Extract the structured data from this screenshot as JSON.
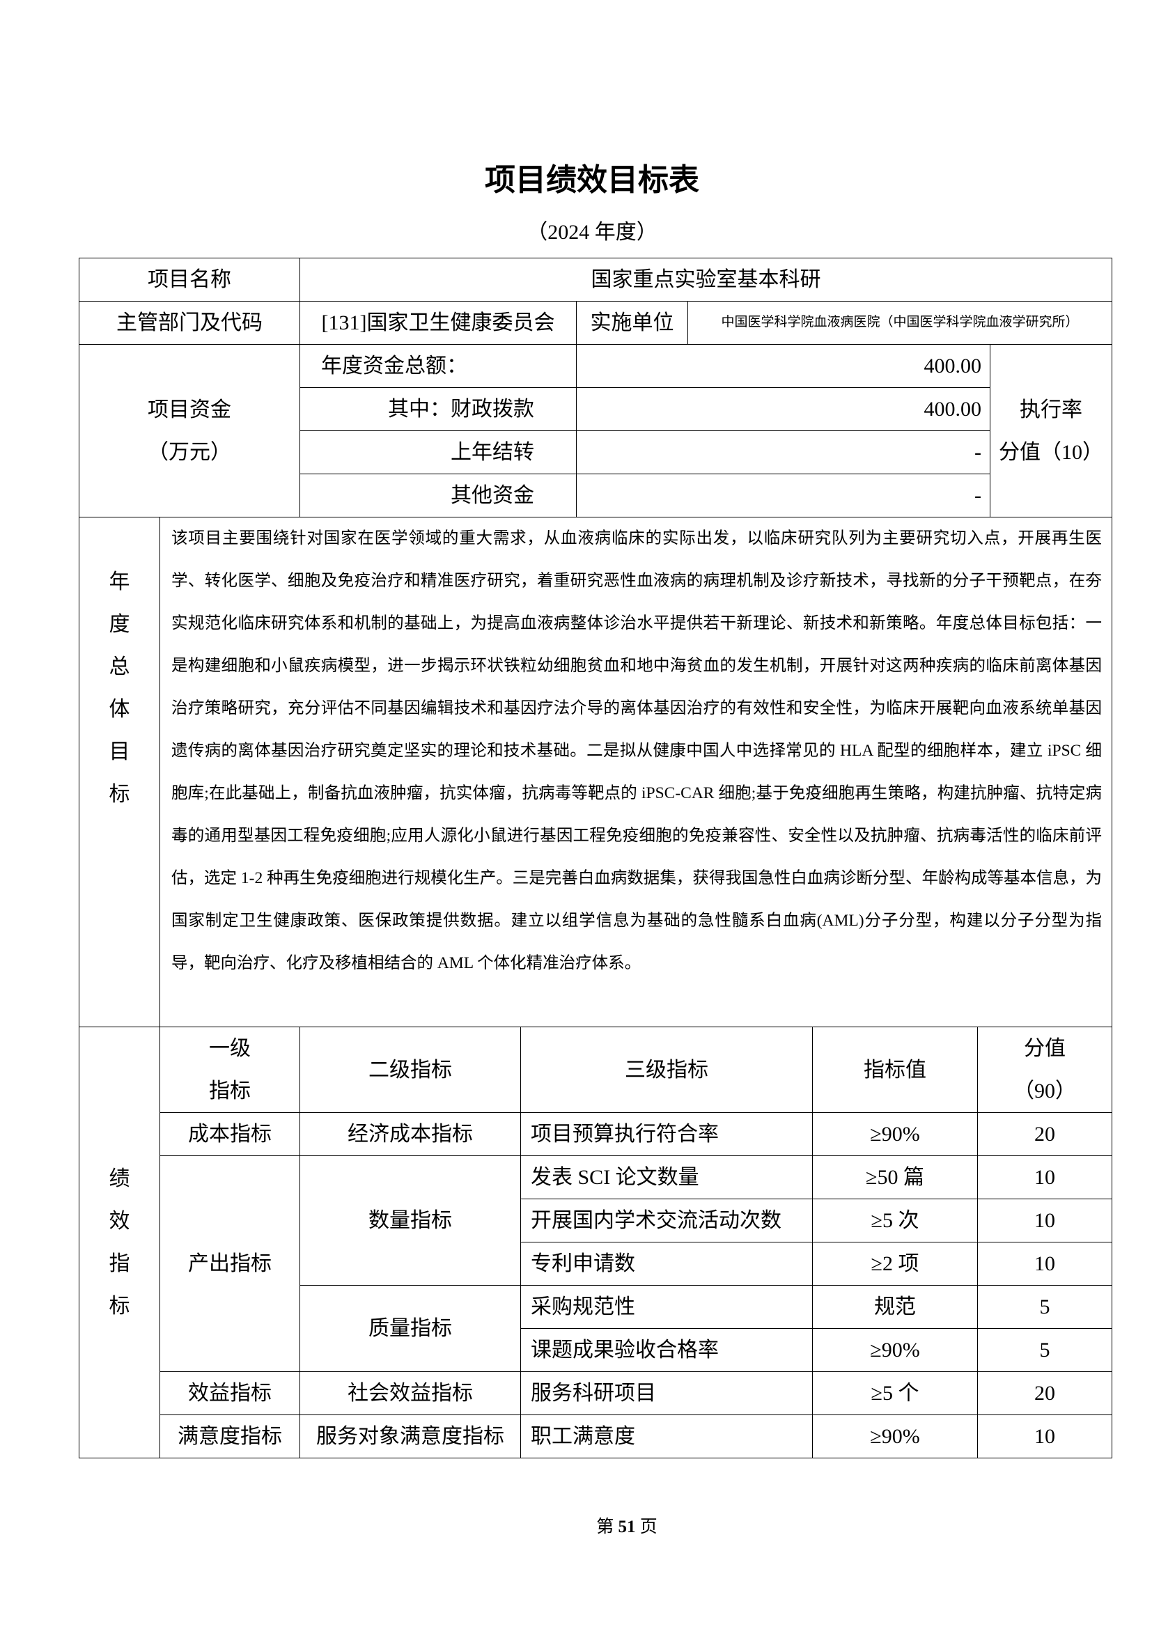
{
  "title": "项目绩效目标表",
  "subtitle": "（2024 年度）",
  "project": {
    "name_label": "项目名称",
    "name": "国家重点实验室基本科研",
    "dept_label": "主管部门及代码",
    "dept": "[131]国家卫生健康委员会",
    "unit_label": "实施单位",
    "unit": "中国医学科学院血液病医院（中国医学科学院血液学研究所）"
  },
  "funds": {
    "label": "项目资金",
    "unit": "（万元）",
    "total_label": "年度资金总额：",
    "total": "400.00",
    "fiscal_label": "其中：财政拨款",
    "fiscal": "400.00",
    "carry_label": "上年结转",
    "carry": "-",
    "other_label": "其他资金",
    "other": "-",
    "rate_label": "执行率",
    "rate_score": "分值（10）"
  },
  "goal": {
    "label_chars": [
      "年",
      "度",
      "总",
      "体",
      "目",
      "标"
    ],
    "text": "该项目主要围绕针对国家在医学领域的重大需求，从血液病临床的实际出发，以临床研究队列为主要研究切入点，开展再生医学、转化医学、细胞及免疫治疗和精准医疗研究，着重研究恶性血液病的病理机制及诊疗新技术，寻找新的分子干预靶点，在夯实规范化临床研究体系和机制的基础上，为提高血液病整体诊治水平提供若干新理论、新技术和新策略。年度总体目标包括：一是构建细胞和小鼠疾病模型，进一步揭示环状铁粒幼细胞贫血和地中海贫血的发生机制，开展针对这两种疾病的临床前离体基因治疗策略研究，充分评估不同基因编辑技术和基因疗法介导的离体基因治疗的有效性和安全性，为临床开展靶向血液系统单基因遗传病的离体基因治疗研究奠定坚实的理论和技术基础。二是拟从健康中国人中选择常见的 HLA 配型的细胞样本，建立 iPSC 细胞库;在此基础上，制备抗血液肿瘤，抗实体瘤，抗病毒等靶点的 iPSC-CAR 细胞;基于免疫细胞再生策略，构建抗肿瘤、抗特定病毒的通用型基因工程免疫细胞;应用人源化小鼠进行基因工程免疫细胞的免疫兼容性、安全性以及抗肿瘤、抗病毒活性的临床前评估，选定 1-2 种再生免疫细胞进行规模化生产。三是完善白血病数据集，获得我国急性白血病诊断分型、年龄构成等基本信息，为国家制定卫生健康政策、医保政策提供数据。建立以组学信息为基础的急性髓系白血病(AML)分子分型，构建以分子分型为指导，靶向治疗、化疗及移植相结合的 AML 个体化精准治疗体系。"
  },
  "perf": {
    "label_chars": [
      "绩",
      "效",
      "指",
      "标"
    ],
    "headers": {
      "level1": "一级\n指标",
      "level1_a": "一级",
      "level1_b": "指标",
      "level2": "二级指标",
      "level3": "三级指标",
      "value": "指标值",
      "score_a": "分值",
      "score_b": "（90）"
    },
    "groups": {
      "cost": "成本指标",
      "econ": "经济成本指标",
      "output": "产出指标",
      "quantity": "数量指标",
      "quality": "质量指标",
      "benefit": "效益指标",
      "social": "社会效益指标",
      "satisfaction": "满意度指标",
      "service": "服务对象满意度指标"
    },
    "rows": [
      {
        "name": "项目预算执行符合率",
        "value": "≥90%",
        "score": "20"
      },
      {
        "name": "发表 SCI 论文数量",
        "value": "≥50 篇",
        "score": "10"
      },
      {
        "name": "开展国内学术交流活动次数",
        "value": "≥5 次",
        "score": "10"
      },
      {
        "name": "专利申请数",
        "value": "≥2 项",
        "score": "10"
      },
      {
        "name": "采购规范性",
        "value": "规范",
        "score": "5"
      },
      {
        "name": "课题成果验收合格率",
        "value": "≥90%",
        "score": "5"
      },
      {
        "name": "服务科研项目",
        "value": "≥5 个",
        "score": "20"
      },
      {
        "name": "职工满意度",
        "value": "≥90%",
        "score": "10"
      }
    ]
  },
  "footer": {
    "prefix": "第 ",
    "page": "51",
    "suffix": " 页"
  }
}
